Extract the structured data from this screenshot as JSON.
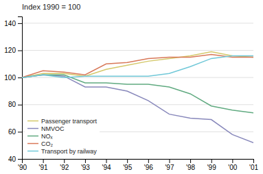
{
  "chart_data": {
    "type": "line",
    "title": "Index 1990 = 100",
    "x": [
      1990,
      1991,
      1992,
      1993,
      1994,
      1995,
      1996,
      1997,
      1998,
      1999,
      2000,
      2001
    ],
    "xlim": [
      1990,
      2001
    ],
    "xticks": [
      {
        "value": 1990,
        "label": "'90"
      },
      {
        "value": 1991,
        "label": "'91"
      },
      {
        "value": 1992,
        "label": "'92"
      },
      {
        "value": 1993,
        "label": "'93"
      },
      {
        "value": 1994,
        "label": "'94"
      },
      {
        "value": 1995,
        "label": "'95"
      },
      {
        "value": 1996,
        "label": "'96"
      },
      {
        "value": 1997,
        "label": "'97"
      },
      {
        "value": 1998,
        "label": "'98"
      },
      {
        "value": 1999,
        "label": "'99"
      },
      {
        "value": 2000,
        "label": "'00"
      },
      {
        "value": 2001,
        "label": "'01"
      }
    ],
    "ylim": [
      40,
      145
    ],
    "yticks": [
      40,
      60,
      80,
      100,
      120,
      140
    ],
    "grid": true,
    "legend": "lower left",
    "series": [
      {
        "name": "Passenger transport",
        "color": "#d4c86a",
        "values": [
          100,
          103,
          103,
          101,
          106,
          109,
          112,
          114,
          116,
          119,
          116,
          115
        ]
      },
      {
        "name": "NMVOC",
        "color": "#8888bb",
        "values": [
          100,
          102,
          101,
          93,
          93,
          90,
          83,
          73,
          70,
          69,
          58,
          52
        ]
      },
      {
        "name": "NOₓ",
        "color": "#60aa80",
        "values": [
          100,
          102,
          102,
          96,
          96,
          95,
          95,
          93,
          88,
          79,
          76,
          74
        ]
      },
      {
        "name": "CO₂",
        "color": "#d87858",
        "values": [
          100,
          105,
          104,
          102,
          110,
          111,
          114,
          115,
          115,
          117,
          115,
          115
        ]
      },
      {
        "name": "Transport by railway",
        "color": "#70c8d8",
        "values": [
          100,
          102,
          100,
          101,
          101,
          101,
          101,
          103,
          108,
          114,
          116,
          116
        ]
      }
    ]
  }
}
